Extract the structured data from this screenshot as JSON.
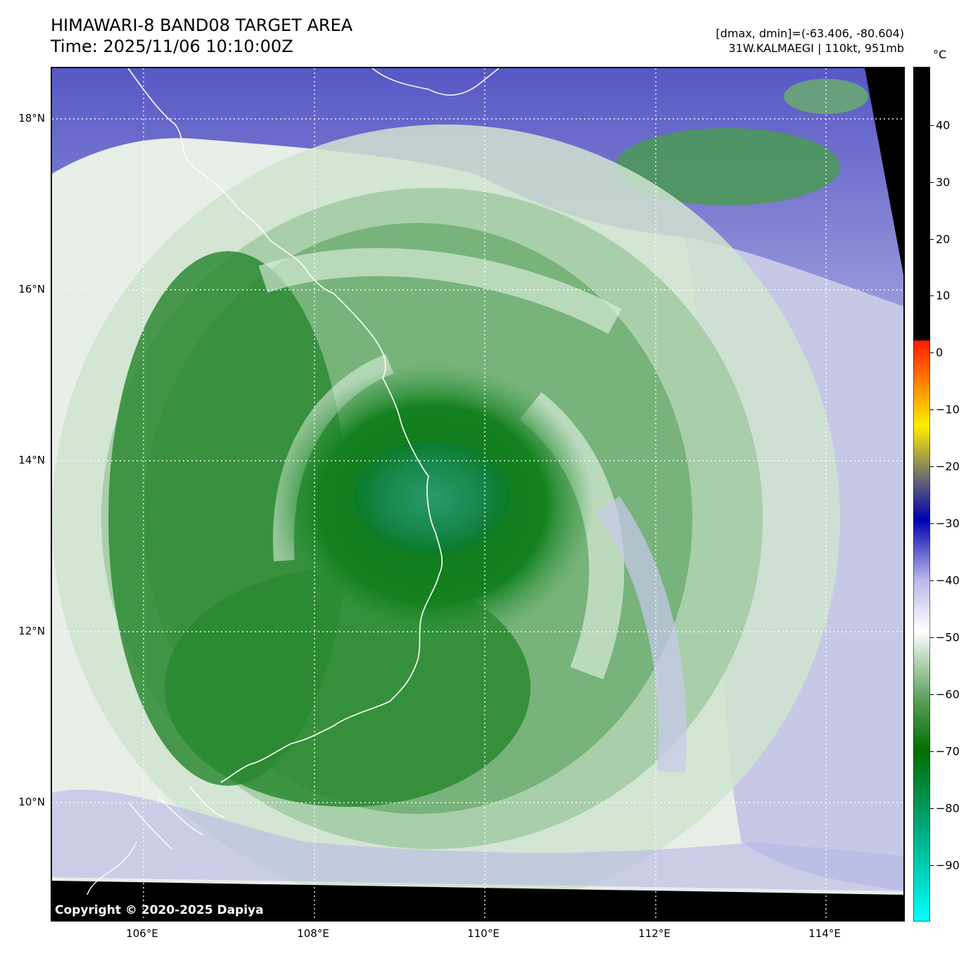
{
  "header": {
    "title": "HIMAWARI-8 BAND08 TARGET AREA",
    "time": "Time: 2025/11/06 10:10:00Z",
    "dmax_dmin": "[dmax, dmin]=(-63.406, -80.604)",
    "storm": "31W.KALMAEGI | 110kt, 951mb"
  },
  "map": {
    "lat_labels": [
      "18°N",
      "16°N",
      "14°N",
      "12°N",
      "10°N"
    ],
    "lon_labels": [
      "106°E",
      "108°E",
      "110°E",
      "112°E",
      "114°E"
    ],
    "copyright": "Copyright © 2020-2025 Dapiya"
  },
  "colorbar": {
    "unit": "°C",
    "ticks": [
      "40",
      "30",
      "20",
      "10",
      "0",
      "−10",
      "−20",
      "−30",
      "−40",
      "−50",
      "−60",
      "−70",
      "−80",
      "−90"
    ],
    "colors": {
      "black": "#000000",
      "red": "#ff1a00",
      "orange": "#ff9900",
      "yellow": "#ffee00",
      "gray": "#6e6e6e",
      "blue": "#0000b0",
      "lavender": "#b8b8ea",
      "white": "#ffffff",
      "green": "#007000",
      "cyan": "#00ffff"
    }
  }
}
